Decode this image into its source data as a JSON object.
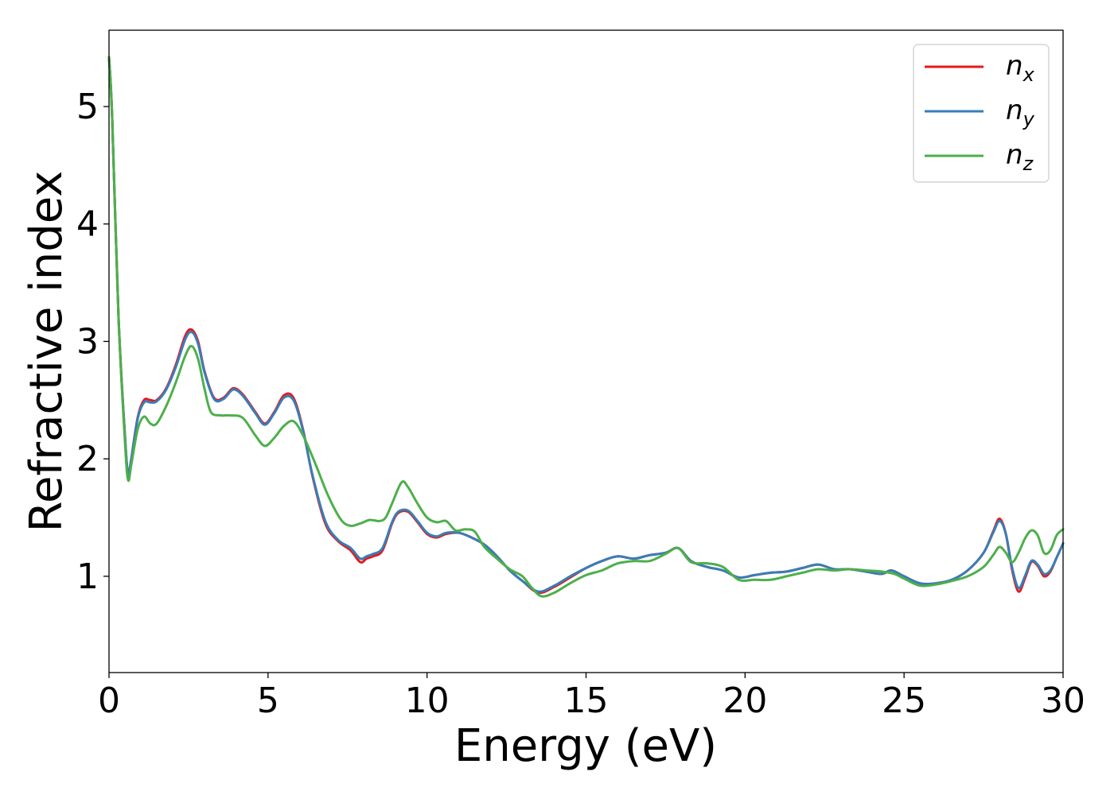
{
  "chart_data": {
    "type": "line",
    "xlabel": "Energy (eV)",
    "ylabel": "Refractive index",
    "xlim": [
      0,
      30
    ],
    "ylim": [
      0.18,
      5.65
    ],
    "xticks": [
      0,
      5,
      10,
      15,
      20,
      25,
      30
    ],
    "yticks": [
      1,
      2,
      3,
      4,
      5
    ],
    "grid": false,
    "legend_position": "top-right",
    "series": [
      {
        "name": "n",
        "subscript": "x",
        "color": "#e41a1c",
        "x": [
          0,
          0.1,
          0.3,
          0.5,
          0.6,
          0.7,
          0.9,
          1.1,
          1.3,
          1.5,
          1.8,
          2.1,
          2.4,
          2.6,
          2.8,
          3.0,
          3.3,
          3.6,
          3.9,
          4.2,
          4.6,
          4.9,
          5.2,
          5.5,
          5.8,
          6.1,
          6.4,
          6.8,
          7.2,
          7.6,
          7.9,
          8.1,
          8.3,
          8.6,
          8.9,
          9.1,
          9.4,
          9.7,
          10.0,
          10.3,
          10.6,
          11.0,
          11.4,
          11.8,
          12.2,
          12.6,
          13.0,
          13.5,
          14.0,
          14.5,
          15.0,
          15.5,
          16.0,
          16.5,
          17.0,
          17.5,
          17.9,
          18.3,
          18.8,
          19.3,
          19.8,
          20.3,
          20.8,
          21.3,
          21.8,
          22.3,
          22.8,
          23.3,
          23.8,
          24.3,
          24.6,
          25.0,
          25.5,
          26.0,
          26.5,
          27.0,
          27.5,
          27.8,
          28.0,
          28.2,
          28.4,
          28.6,
          28.8,
          29.0,
          29.2,
          29.4,
          29.6,
          29.8,
          30.0
        ],
        "values": [
          5.42,
          4.9,
          3.2,
          2.2,
          1.86,
          2.0,
          2.35,
          2.5,
          2.5,
          2.5,
          2.6,
          2.8,
          3.05,
          3.1,
          3.0,
          2.75,
          2.52,
          2.52,
          2.6,
          2.55,
          2.4,
          2.3,
          2.4,
          2.54,
          2.52,
          2.25,
          1.85,
          1.45,
          1.3,
          1.22,
          1.12,
          1.15,
          1.17,
          1.22,
          1.45,
          1.54,
          1.55,
          1.46,
          1.36,
          1.33,
          1.36,
          1.37,
          1.33,
          1.27,
          1.17,
          1.05,
          0.96,
          0.86,
          0.91,
          0.99,
          1.07,
          1.13,
          1.17,
          1.15,
          1.18,
          1.2,
          1.24,
          1.13,
          1.08,
          1.05,
          0.99,
          1.01,
          1.03,
          1.04,
          1.07,
          1.1,
          1.06,
          1.06,
          1.04,
          1.02,
          1.05,
          1.0,
          0.94,
          0.94,
          0.97,
          1.05,
          1.2,
          1.38,
          1.49,
          1.36,
          1.05,
          0.87,
          0.98,
          1.12,
          1.09,
          1.0,
          1.04,
          1.16,
          1.28
        ]
      },
      {
        "name": "n",
        "subscript": "y",
        "color": "#377eb8",
        "x": [
          0,
          0.1,
          0.3,
          0.5,
          0.6,
          0.7,
          0.9,
          1.1,
          1.3,
          1.5,
          1.8,
          2.1,
          2.4,
          2.6,
          2.8,
          3.0,
          3.3,
          3.6,
          3.9,
          4.2,
          4.6,
          4.9,
          5.2,
          5.5,
          5.8,
          6.1,
          6.4,
          6.8,
          7.2,
          7.6,
          7.9,
          8.1,
          8.3,
          8.6,
          8.9,
          9.1,
          9.4,
          9.7,
          10.0,
          10.3,
          10.6,
          11.0,
          11.4,
          11.8,
          12.2,
          12.6,
          13.0,
          13.5,
          14.0,
          14.5,
          15.0,
          15.5,
          16.0,
          16.5,
          17.0,
          17.5,
          17.9,
          18.3,
          18.8,
          19.3,
          19.8,
          20.3,
          20.8,
          21.3,
          21.8,
          22.3,
          22.8,
          23.3,
          23.8,
          24.3,
          24.6,
          25.0,
          25.5,
          26.0,
          26.5,
          27.0,
          27.5,
          27.8,
          28.0,
          28.2,
          28.4,
          28.6,
          28.8,
          29.0,
          29.2,
          29.4,
          29.6,
          29.8,
          30.0
        ],
        "values": [
          5.42,
          4.9,
          3.2,
          2.2,
          1.88,
          2.0,
          2.34,
          2.48,
          2.48,
          2.49,
          2.59,
          2.78,
          3.02,
          3.08,
          2.98,
          2.74,
          2.51,
          2.51,
          2.59,
          2.54,
          2.39,
          2.29,
          2.39,
          2.52,
          2.5,
          2.24,
          1.86,
          1.47,
          1.31,
          1.24,
          1.15,
          1.17,
          1.19,
          1.24,
          1.46,
          1.55,
          1.56,
          1.47,
          1.37,
          1.34,
          1.37,
          1.37,
          1.33,
          1.27,
          1.17,
          1.05,
          0.96,
          0.87,
          0.92,
          1.0,
          1.07,
          1.13,
          1.17,
          1.15,
          1.18,
          1.2,
          1.24,
          1.13,
          1.08,
          1.05,
          0.99,
          1.01,
          1.03,
          1.04,
          1.07,
          1.1,
          1.06,
          1.06,
          1.04,
          1.02,
          1.05,
          1.0,
          0.94,
          0.94,
          0.97,
          1.05,
          1.2,
          1.37,
          1.47,
          1.36,
          1.07,
          0.9,
          1.0,
          1.13,
          1.1,
          1.02,
          1.05,
          1.16,
          1.28
        ]
      },
      {
        "name": "n",
        "subscript": "z",
        "color": "#4daf4a",
        "x": [
          0,
          0.1,
          0.3,
          0.5,
          0.6,
          0.7,
          0.9,
          1.1,
          1.3,
          1.5,
          1.8,
          2.1,
          2.4,
          2.6,
          2.8,
          3.0,
          3.2,
          3.5,
          3.8,
          4.2,
          4.6,
          4.9,
          5.2,
          5.5,
          5.8,
          6.1,
          6.5,
          6.9,
          7.3,
          7.6,
          7.9,
          8.2,
          8.5,
          8.7,
          8.9,
          9.2,
          9.4,
          9.7,
          10.0,
          10.3,
          10.6,
          10.9,
          11.2,
          11.5,
          11.8,
          12.2,
          12.6,
          13.0,
          13.3,
          13.6,
          14.0,
          14.5,
          15.0,
          15.5,
          16.0,
          16.5,
          17.0,
          17.5,
          17.9,
          18.3,
          18.8,
          19.3,
          19.8,
          20.3,
          20.8,
          21.3,
          21.8,
          22.3,
          22.8,
          23.3,
          23.8,
          24.3,
          24.7,
          25.0,
          25.5,
          26.0,
          26.5,
          27.0,
          27.5,
          27.8,
          28.0,
          28.2,
          28.4,
          28.6,
          28.8,
          29.0,
          29.2,
          29.4,
          29.6,
          29.8,
          30.0
        ],
        "values": [
          5.42,
          4.9,
          3.2,
          2.15,
          1.82,
          1.95,
          2.25,
          2.36,
          2.3,
          2.3,
          2.45,
          2.65,
          2.88,
          2.96,
          2.85,
          2.6,
          2.4,
          2.37,
          2.37,
          2.35,
          2.2,
          2.11,
          2.18,
          2.28,
          2.32,
          2.2,
          1.95,
          1.68,
          1.48,
          1.43,
          1.45,
          1.48,
          1.47,
          1.5,
          1.62,
          1.8,
          1.76,
          1.62,
          1.5,
          1.46,
          1.47,
          1.39,
          1.4,
          1.38,
          1.25,
          1.15,
          1.06,
          1.0,
          0.9,
          0.83,
          0.86,
          0.94,
          1.01,
          1.05,
          1.11,
          1.13,
          1.13,
          1.19,
          1.24,
          1.12,
          1.11,
          1.08,
          0.97,
          0.97,
          0.97,
          1.0,
          1.03,
          1.06,
          1.05,
          1.06,
          1.05,
          1.04,
          1.02,
          0.98,
          0.92,
          0.93,
          0.96,
          1.0,
          1.08,
          1.18,
          1.25,
          1.2,
          1.12,
          1.2,
          1.32,
          1.39,
          1.35,
          1.2,
          1.22,
          1.35,
          1.4
        ]
      }
    ]
  }
}
